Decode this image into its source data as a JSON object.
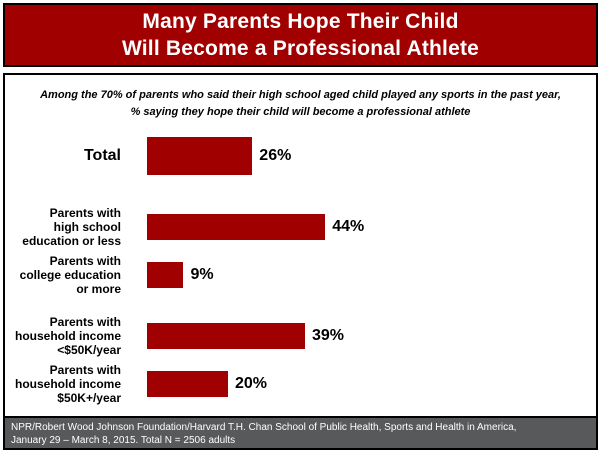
{
  "header": {
    "title_line1": "Many Parents Hope Their Child",
    "title_line2": "Will Become a Professional Athlete"
  },
  "subtitle": {
    "line1": "Among the 70% of parents who said their high school aged child played any sports in the past year,",
    "line2": "% saying they hope their child will become a professional athlete"
  },
  "chart_data": {
    "type": "bar",
    "orientation": "horizontal",
    "title": "Many Parents Hope Their Child Will Become a Professional Athlete",
    "subtitle": "Among the 70% of parents who said their high school aged child played any sports in the past year, % saying they hope their child will become a professional athlete",
    "categories": [
      "Total",
      "Parents with high school education or less",
      "Parents with college education or more",
      "Parents with household income <$50K/year",
      "Parents with household income $50K+/year"
    ],
    "values": [
      26,
      44,
      9,
      39,
      20
    ],
    "value_labels": [
      "26%",
      "44%",
      "9%",
      "39%",
      "20%"
    ],
    "xlim": [
      0,
      100
    ],
    "grid": false,
    "legend": false,
    "bar_color": "#a00000",
    "rows": [
      {
        "label_lines": [
          "Total"
        ],
        "value": 26,
        "value_label": "26%",
        "emphasis": true
      },
      {
        "label_lines": [
          "Parents with",
          "high school",
          "education or less"
        ],
        "value": 44,
        "value_label": "44%"
      },
      {
        "label_lines": [
          "Parents with",
          "college education",
          "or more"
        ],
        "value": 9,
        "value_label": "9%"
      },
      {
        "label_lines": [
          "Parents with",
          "household income",
          "<$50K/year"
        ],
        "value": 39,
        "value_label": "39%"
      },
      {
        "label_lines": [
          "Parents with",
          "household income",
          "$50K+/year"
        ],
        "value": 20,
        "value_label": "20%"
      }
    ]
  },
  "footer": {
    "line1": "NPR/Robert Wood Johnson Foundation/Harvard T.H. Chan School of Public Health, Sports and Health in America,",
    "line2": "January 29 – March 8, 2015. Total N = 2506 adults"
  },
  "colors": {
    "accent_red": "#a00000",
    "footer_gray": "#58595b",
    "border_black": "#000000",
    "title_white": "#ffffff",
    "text_black": "#000000"
  }
}
